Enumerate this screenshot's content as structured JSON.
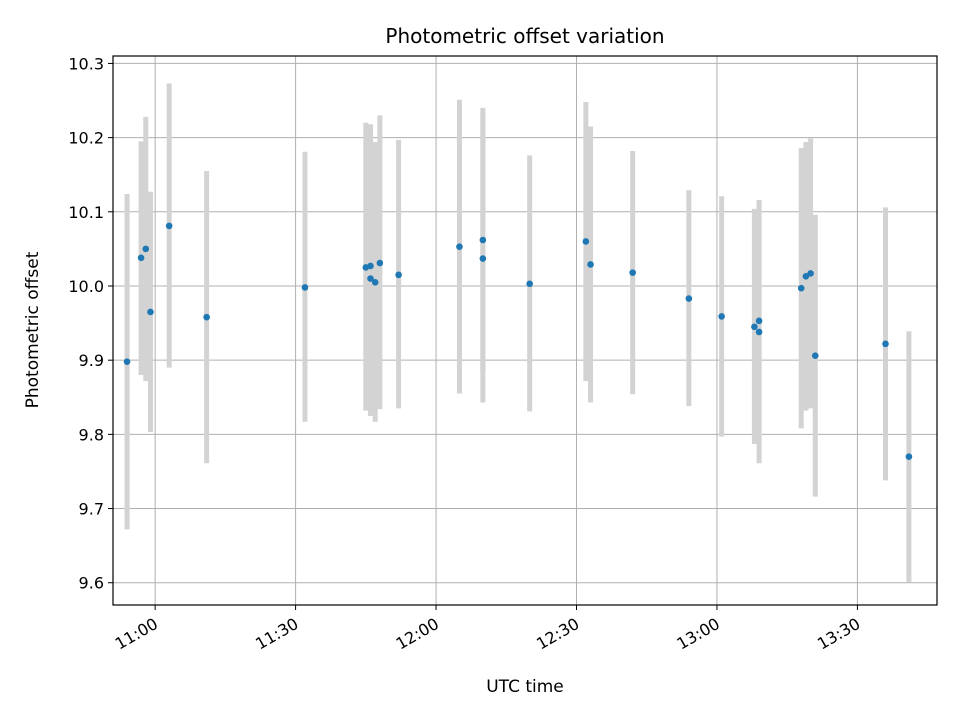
{
  "chart_data": {
    "type": "scatter",
    "title": "Photometric offset variation",
    "xlabel": "UTC time",
    "ylabel": "Photometric offset",
    "grid": true,
    "x_ticks": [
      "11:00",
      "11:30",
      "12:00",
      "12:30",
      "13:00",
      "13:30"
    ],
    "y_ticks": [
      "9.6",
      "9.7",
      "9.8",
      "9.9",
      "10.0",
      "10.1",
      "10.2",
      "10.3"
    ],
    "xlim": [
      "10:51",
      "13:47"
    ],
    "ylim": [
      9.57,
      10.31
    ],
    "colors": {
      "points": "#1f77b4",
      "errorbars": "#d3d3d3",
      "grid": "#b0b0b0"
    },
    "series": [
      {
        "points": [
          {
            "x": "10:54",
            "y": 9.898,
            "ylow": 9.672,
            "yhigh": 10.124
          },
          {
            "x": "10:59",
            "y": 9.965,
            "ylow": 9.803,
            "yhigh": 10.127
          },
          {
            "x": "10:57",
            "y": 10.038,
            "ylow": 9.88,
            "yhigh": 10.195
          },
          {
            "x": "10:58",
            "y": 10.05,
            "ylow": 9.872,
            "yhigh": 10.228
          },
          {
            "x": "11:03",
            "y": 10.081,
            "ylow": 9.89,
            "yhigh": 10.273
          },
          {
            "x": "11:11",
            "y": 9.958,
            "ylow": 9.761,
            "yhigh": 10.155
          },
          {
            "x": "11:32",
            "y": 9.998,
            "ylow": 9.817,
            "yhigh": 10.181
          },
          {
            "x": "11:45",
            "y": 10.025,
            "ylow": 9.832,
            "yhigh": 10.22
          },
          {
            "x": "11:46",
            "y": 10.027,
            "ylow": 9.836,
            "yhigh": 10.218
          },
          {
            "x": "11:46",
            "y": 10.01,
            "ylow": 9.825,
            "yhigh": 10.197
          },
          {
            "x": "11:47",
            "y": 10.005,
            "ylow": 9.817,
            "yhigh": 10.194
          },
          {
            "x": "11:48",
            "y": 10.031,
            "ylow": 9.834,
            "yhigh": 10.23
          },
          {
            "x": "11:52",
            "y": 10.015,
            "ylow": 9.835,
            "yhigh": 10.197
          },
          {
            "x": "12:05",
            "y": 10.053,
            "ylow": 9.855,
            "yhigh": 10.251
          },
          {
            "x": "12:10",
            "y": 10.037,
            "ylow": 9.843,
            "yhigh": 10.233
          },
          {
            "x": "12:10",
            "y": 10.062,
            "ylow": 9.884,
            "yhigh": 10.24
          },
          {
            "x": "12:20",
            "y": 10.003,
            "ylow": 9.831,
            "yhigh": 10.176
          },
          {
            "x": "12:32",
            "y": 10.06,
            "ylow": 9.872,
            "yhigh": 10.248
          },
          {
            "x": "12:33",
            "y": 10.029,
            "ylow": 9.843,
            "yhigh": 10.215
          },
          {
            "x": "12:42",
            "y": 10.018,
            "ylow": 9.854,
            "yhigh": 10.182
          },
          {
            "x": "12:54",
            "y": 9.983,
            "ylow": 9.838,
            "yhigh": 10.129
          },
          {
            "x": "13:01",
            "y": 9.959,
            "ylow": 9.797,
            "yhigh": 10.121
          },
          {
            "x": "13:08",
            "y": 9.945,
            "ylow": 9.787,
            "yhigh": 10.104
          },
          {
            "x": "13:09",
            "y": 9.938,
            "ylow": 9.761,
            "yhigh": 10.115
          },
          {
            "x": "13:09",
            "y": 9.953,
            "ylow": 9.79,
            "yhigh": 10.116
          },
          {
            "x": "13:18",
            "y": 9.997,
            "ylow": 9.808,
            "yhigh": 10.186
          },
          {
            "x": "13:19",
            "y": 10.013,
            "ylow": 9.832,
            "yhigh": 10.194
          },
          {
            "x": "13:20",
            "y": 10.017,
            "ylow": 9.835,
            "yhigh": 10.199
          },
          {
            "x": "13:21",
            "y": 9.906,
            "ylow": 9.716,
            "yhigh": 10.096
          },
          {
            "x": "13:36",
            "y": 9.922,
            "ylow": 9.738,
            "yhigh": 10.106
          },
          {
            "x": "13:41",
            "y": 9.77,
            "ylow": 9.601,
            "yhigh": 9.939
          }
        ]
      }
    ]
  }
}
